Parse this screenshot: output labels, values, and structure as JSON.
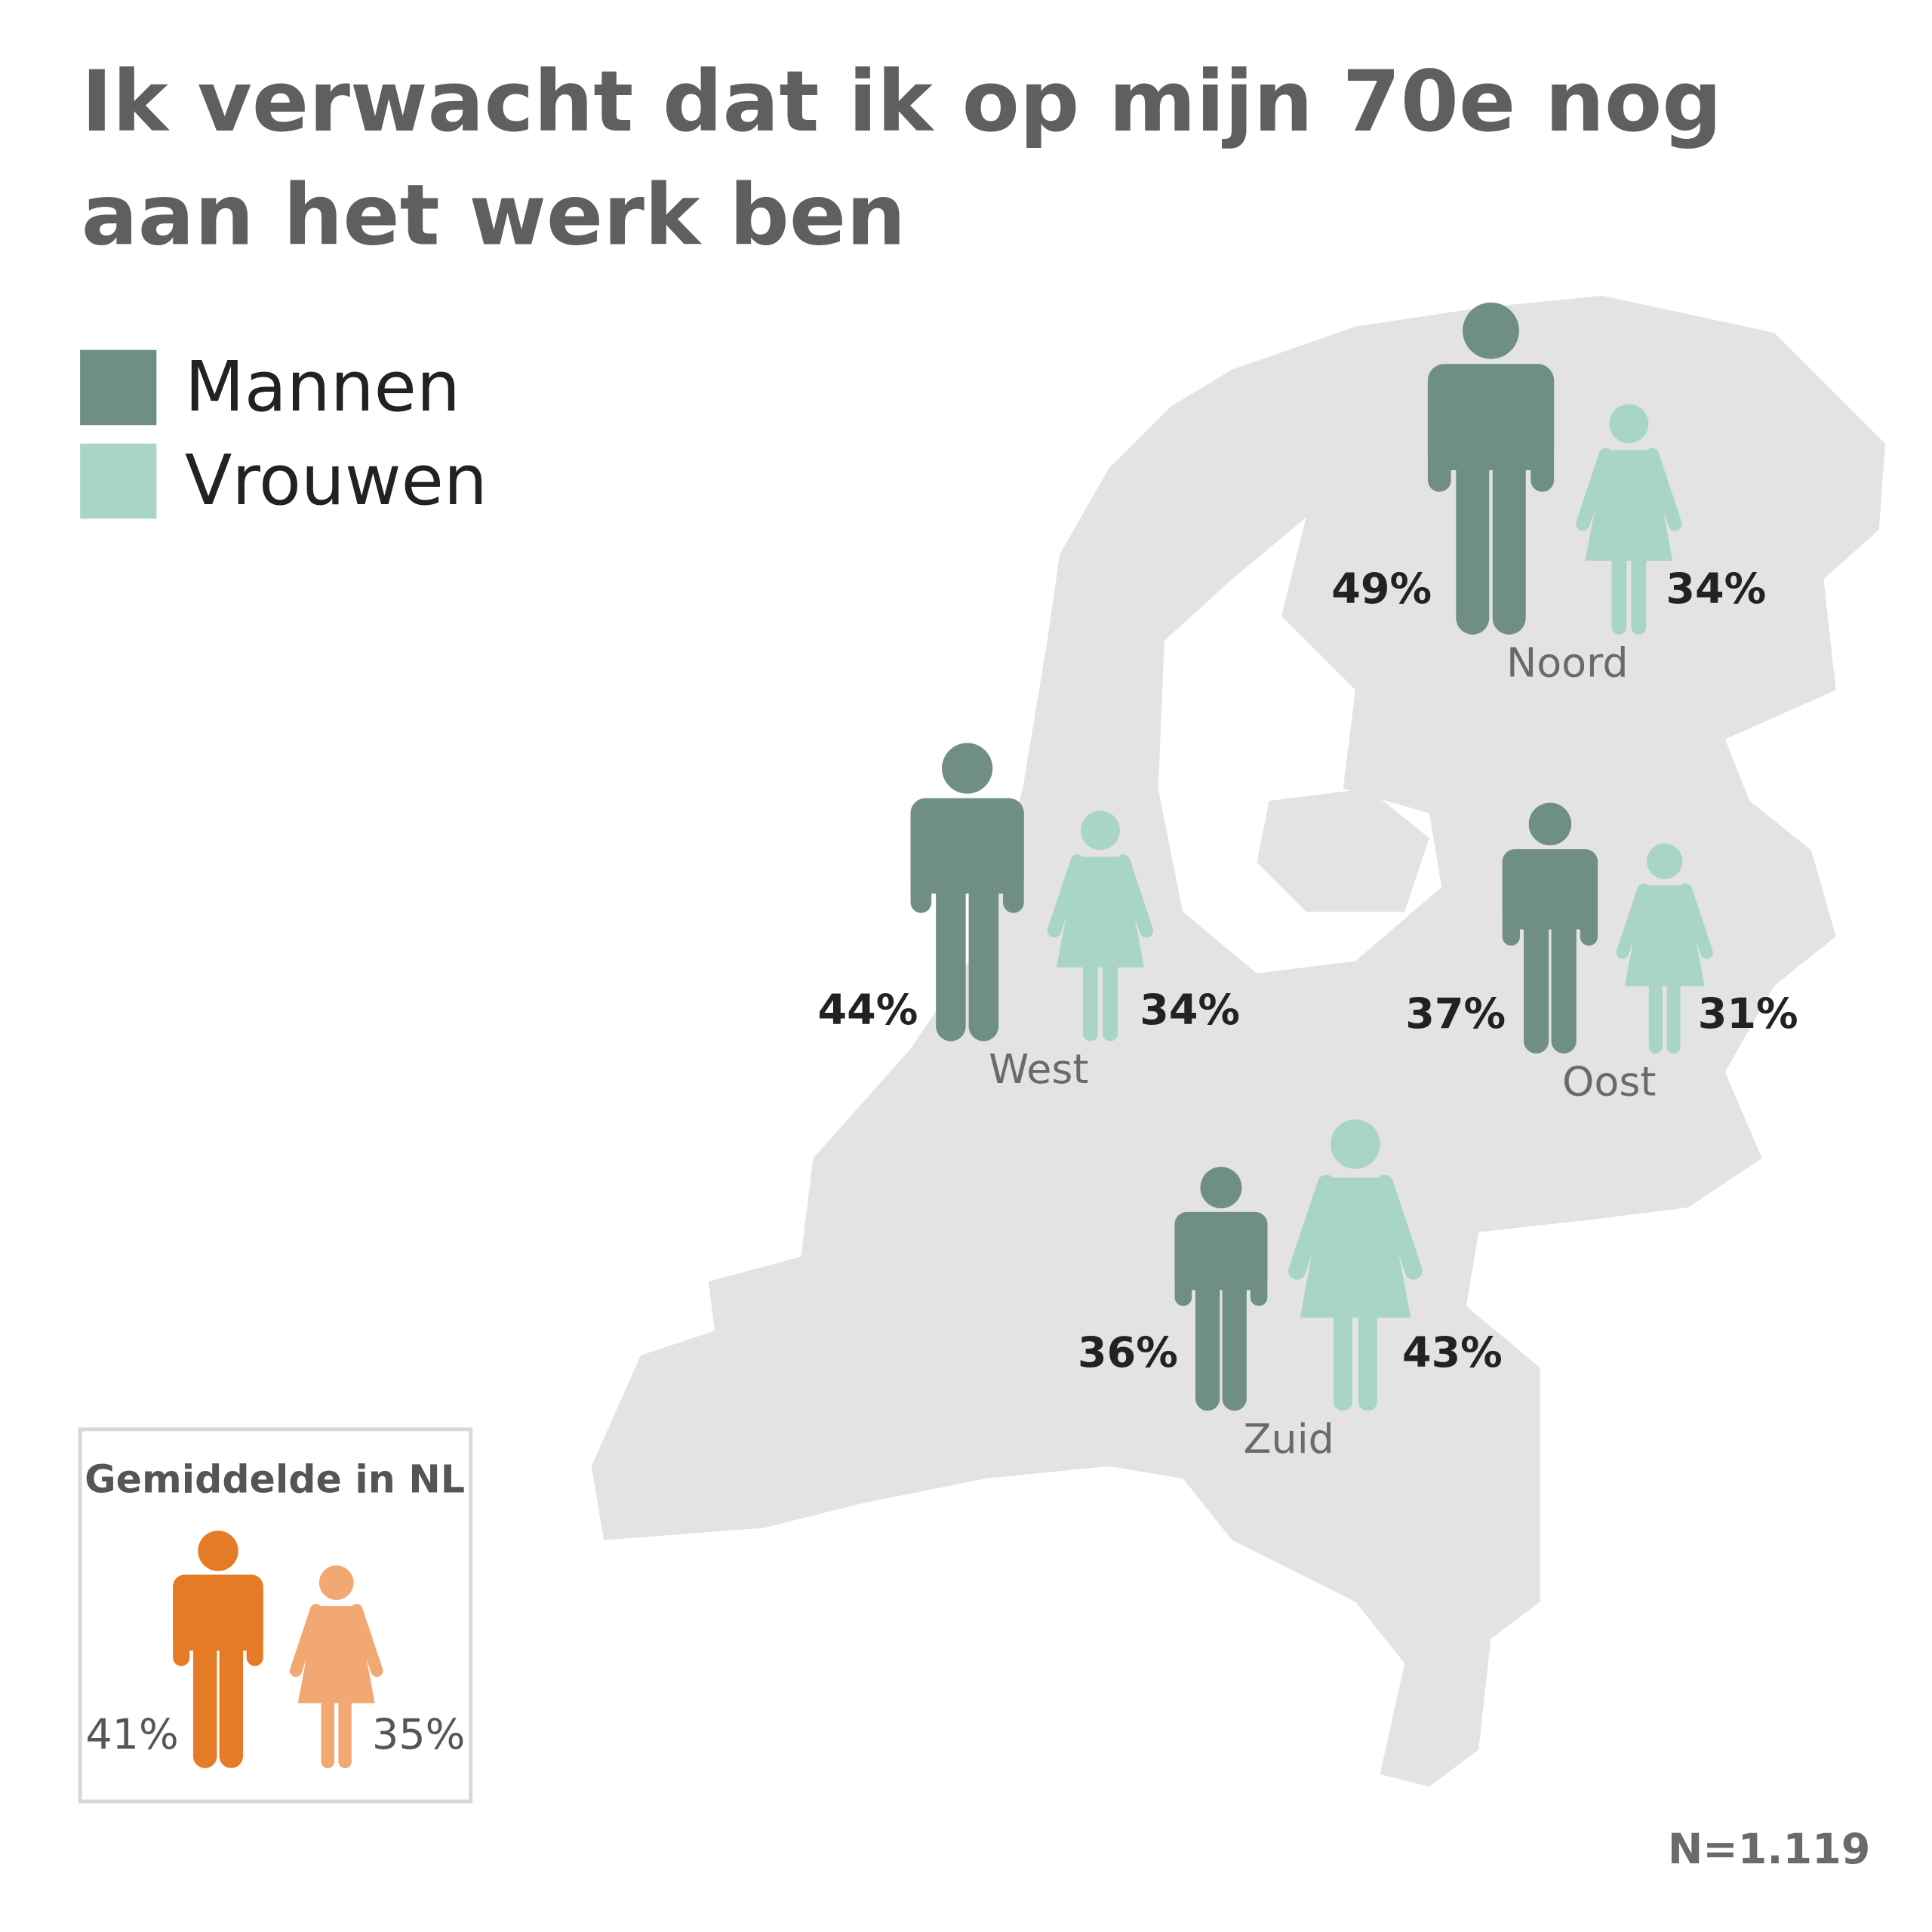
{
  "chart_data": {
    "type": "pictograph",
    "title": "Ik verwacht dat ik op mijn 70e nog aan het werk ben",
    "categories": [
      "Noord",
      "West",
      "Oost",
      "Zuid"
    ],
    "series": [
      {
        "name": "Mannen",
        "color": "#6f8f82",
        "values": [
          49,
          44,
          37,
          36
        ],
        "value_labels": [
          "49%",
          "44%",
          "37%",
          "36%"
        ]
      },
      {
        "name": "Vrouwen",
        "color": "#a9d6c4",
        "values": [
          34,
          34,
          31,
          43
        ],
        "value_labels": [
          "34%",
          "34%",
          "31%",
          "43%"
        ]
      }
    ],
    "average": {
      "title": "Gemiddelde in NL",
      "values": [
        41,
        35
      ],
      "value_labels": [
        "41%",
        "35%"
      ],
      "colors": [
        "#e57b25",
        "#f2a873"
      ]
    },
    "note": "N=1.119"
  }
}
